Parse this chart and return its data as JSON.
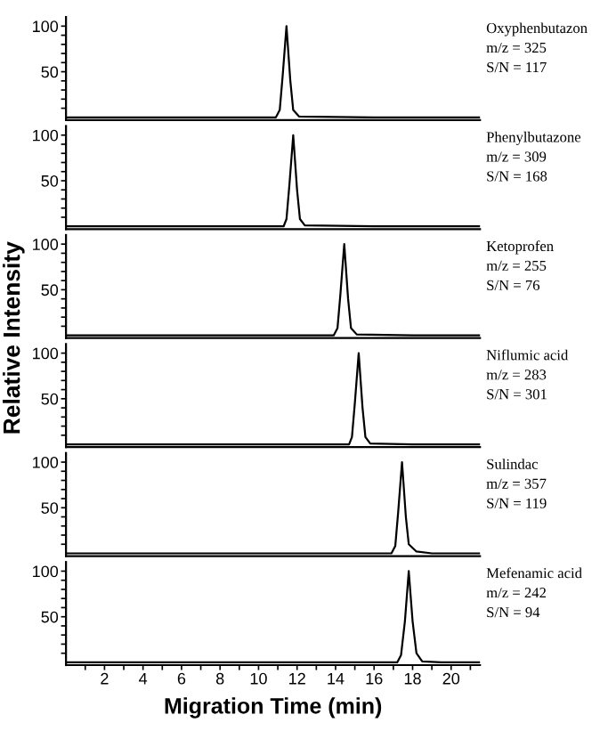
{
  "chart_data": [
    {
      "type": "line",
      "x": [
        0,
        5,
        10.9,
        11.1,
        11.25,
        11.45,
        11.65,
        11.8,
        12.1,
        16,
        21.5
      ],
      "values": [
        0,
        0,
        0,
        8,
        45,
        100,
        40,
        8,
        1,
        0,
        0
      ],
      "color": "#000000",
      "annotations": [
        "Oxyphenbutazon",
        "m/z = 325",
        "S/N = 117"
      ],
      "xlim": [
        0,
        21.5
      ],
      "ylim": [
        -3,
        110
      ],
      "yticks": [
        {
          "value": 10,
          "label": null
        },
        {
          "value": 20,
          "label": null
        },
        {
          "value": 30,
          "label": null
        },
        {
          "value": 40,
          "label": null
        },
        50,
        {
          "value": 60,
          "label": null
        },
        {
          "value": 70,
          "label": null
        },
        {
          "value": 80,
          "label": null
        },
        {
          "value": 90,
          "label": null
        },
        100
      ],
      "tick_labels": "y",
      "grid": false,
      "legend": false
    },
    {
      "type": "line",
      "x": [
        0,
        5,
        11.3,
        11.45,
        11.6,
        11.8,
        12.0,
        12.15,
        12.4,
        16,
        21.5
      ],
      "values": [
        0,
        0,
        0,
        8,
        45,
        100,
        40,
        8,
        1,
        0,
        0
      ],
      "color": "#000000",
      "annotations": [
        "Phenylbutazone",
        "m/z = 309",
        "S/N = 168"
      ],
      "xlim": [
        0,
        21.5
      ],
      "ylim": [
        -3,
        110
      ],
      "yticks": [
        {
          "value": 10,
          "label": null
        },
        {
          "value": 20,
          "label": null
        },
        {
          "value": 30,
          "label": null
        },
        {
          "value": 40,
          "label": null
        },
        50,
        {
          "value": 60,
          "label": null
        },
        {
          "value": 70,
          "label": null
        },
        {
          "value": 80,
          "label": null
        },
        {
          "value": 90,
          "label": null
        },
        100
      ],
      "tick_labels": "y",
      "grid": false,
      "legend": false
    },
    {
      "type": "line",
      "x": [
        0,
        5,
        13.9,
        14.1,
        14.25,
        14.45,
        14.65,
        14.8,
        15.1,
        18,
        21.5
      ],
      "values": [
        0,
        0,
        0,
        8,
        45,
        100,
        40,
        8,
        1,
        0,
        0
      ],
      "color": "#000000",
      "annotations": [
        "Ketoprofen",
        "m/z = 255",
        "S/N = 76"
      ],
      "xlim": [
        0,
        21.5
      ],
      "ylim": [
        -3,
        110
      ],
      "yticks": [
        {
          "value": 10,
          "label": null
        },
        {
          "value": 20,
          "label": null
        },
        {
          "value": 30,
          "label": null
        },
        {
          "value": 40,
          "label": null
        },
        50,
        {
          "value": 60,
          "label": null
        },
        {
          "value": 70,
          "label": null
        },
        {
          "value": 80,
          "label": null
        },
        {
          "value": 90,
          "label": null
        },
        100
      ],
      "ylabel": "Relative Intensity",
      "tick_labels": "y",
      "grid": false,
      "legend": false
    },
    {
      "type": "line",
      "x": [
        0,
        5,
        14.7,
        14.85,
        15.0,
        15.2,
        15.4,
        15.55,
        15.8,
        18,
        21.5
      ],
      "values": [
        0,
        0,
        0,
        8,
        45,
        100,
        40,
        8,
        1,
        0,
        0
      ],
      "color": "#000000",
      "annotations": [
        "Niflumic acid",
        "m/z = 283",
        "S/N = 301"
      ],
      "xlim": [
        0,
        21.5
      ],
      "ylim": [
        -3,
        110
      ],
      "yticks": [
        {
          "value": 10,
          "label": null
        },
        {
          "value": 20,
          "label": null
        },
        {
          "value": 30,
          "label": null
        },
        {
          "value": 40,
          "label": null
        },
        50,
        {
          "value": 60,
          "label": null
        },
        {
          "value": 70,
          "label": null
        },
        {
          "value": 80,
          "label": null
        },
        {
          "value": 90,
          "label": null
        },
        100
      ],
      "tick_labels": "y",
      "grid": false,
      "legend": false
    },
    {
      "type": "line",
      "x": [
        0,
        5,
        16.9,
        17.1,
        17.25,
        17.45,
        17.65,
        17.8,
        18.2,
        19,
        21.5
      ],
      "values": [
        0,
        0,
        0,
        8,
        45,
        100,
        40,
        10,
        2,
        0,
        0
      ],
      "color": "#000000",
      "annotations": [
        "Sulindac",
        "m/z = 357",
        "S/N = 119"
      ],
      "xlim": [
        0,
        21.5
      ],
      "ylim": [
        -3,
        110
      ],
      "yticks": [
        {
          "value": 10,
          "label": null
        },
        {
          "value": 20,
          "label": null
        },
        {
          "value": 30,
          "label": null
        },
        {
          "value": 40,
          "label": null
        },
        50,
        {
          "value": 60,
          "label": null
        },
        {
          "value": 70,
          "label": null
        },
        {
          "value": 80,
          "label": null
        },
        {
          "value": 90,
          "label": null
        },
        100
      ],
      "tick_labels": "y",
      "grid": false,
      "legend": false
    },
    {
      "type": "line",
      "x": [
        0,
        5,
        17.2,
        17.4,
        17.6,
        17.8,
        18.0,
        18.2,
        18.5,
        19.5,
        21.5
      ],
      "values": [
        0,
        0,
        0,
        8,
        45,
        100,
        45,
        10,
        1,
        0,
        0
      ],
      "color": "#000000",
      "annotations": [
        "Mefenamic acid",
        "m/z = 242",
        "S/N = 94"
      ],
      "xlim": [
        0,
        21.5
      ],
      "ylim": [
        -3,
        110
      ],
      "xticks": [
        {
          "value": 1,
          "label": null
        },
        2,
        {
          "value": 3,
          "label": null
        },
        4,
        {
          "value": 5,
          "label": null
        },
        6,
        {
          "value": 7,
          "label": null
        },
        8,
        {
          "value": 9,
          "label": null
        },
        10,
        {
          "value": 11,
          "label": null
        },
        12,
        {
          "value": 13,
          "label": null
        },
        14,
        {
          "value": 15,
          "label": null
        },
        16,
        {
          "value": 17,
          "label": null
        },
        18,
        {
          "value": 19,
          "label": null
        },
        20,
        {
          "value": 21,
          "label": null
        }
      ],
      "yticks": [
        {
          "value": 10,
          "label": null
        },
        {
          "value": 20,
          "label": null
        },
        {
          "value": 30,
          "label": null
        },
        {
          "value": 40,
          "label": null
        },
        50,
        {
          "value": 60,
          "label": null
        },
        {
          "value": 70,
          "label": null
        },
        {
          "value": 80,
          "label": null
        },
        {
          "value": 90,
          "label": null
        },
        100
      ],
      "xlabel": "Migration Time (min)",
      "grid": false,
      "legend": false
    }
  ]
}
